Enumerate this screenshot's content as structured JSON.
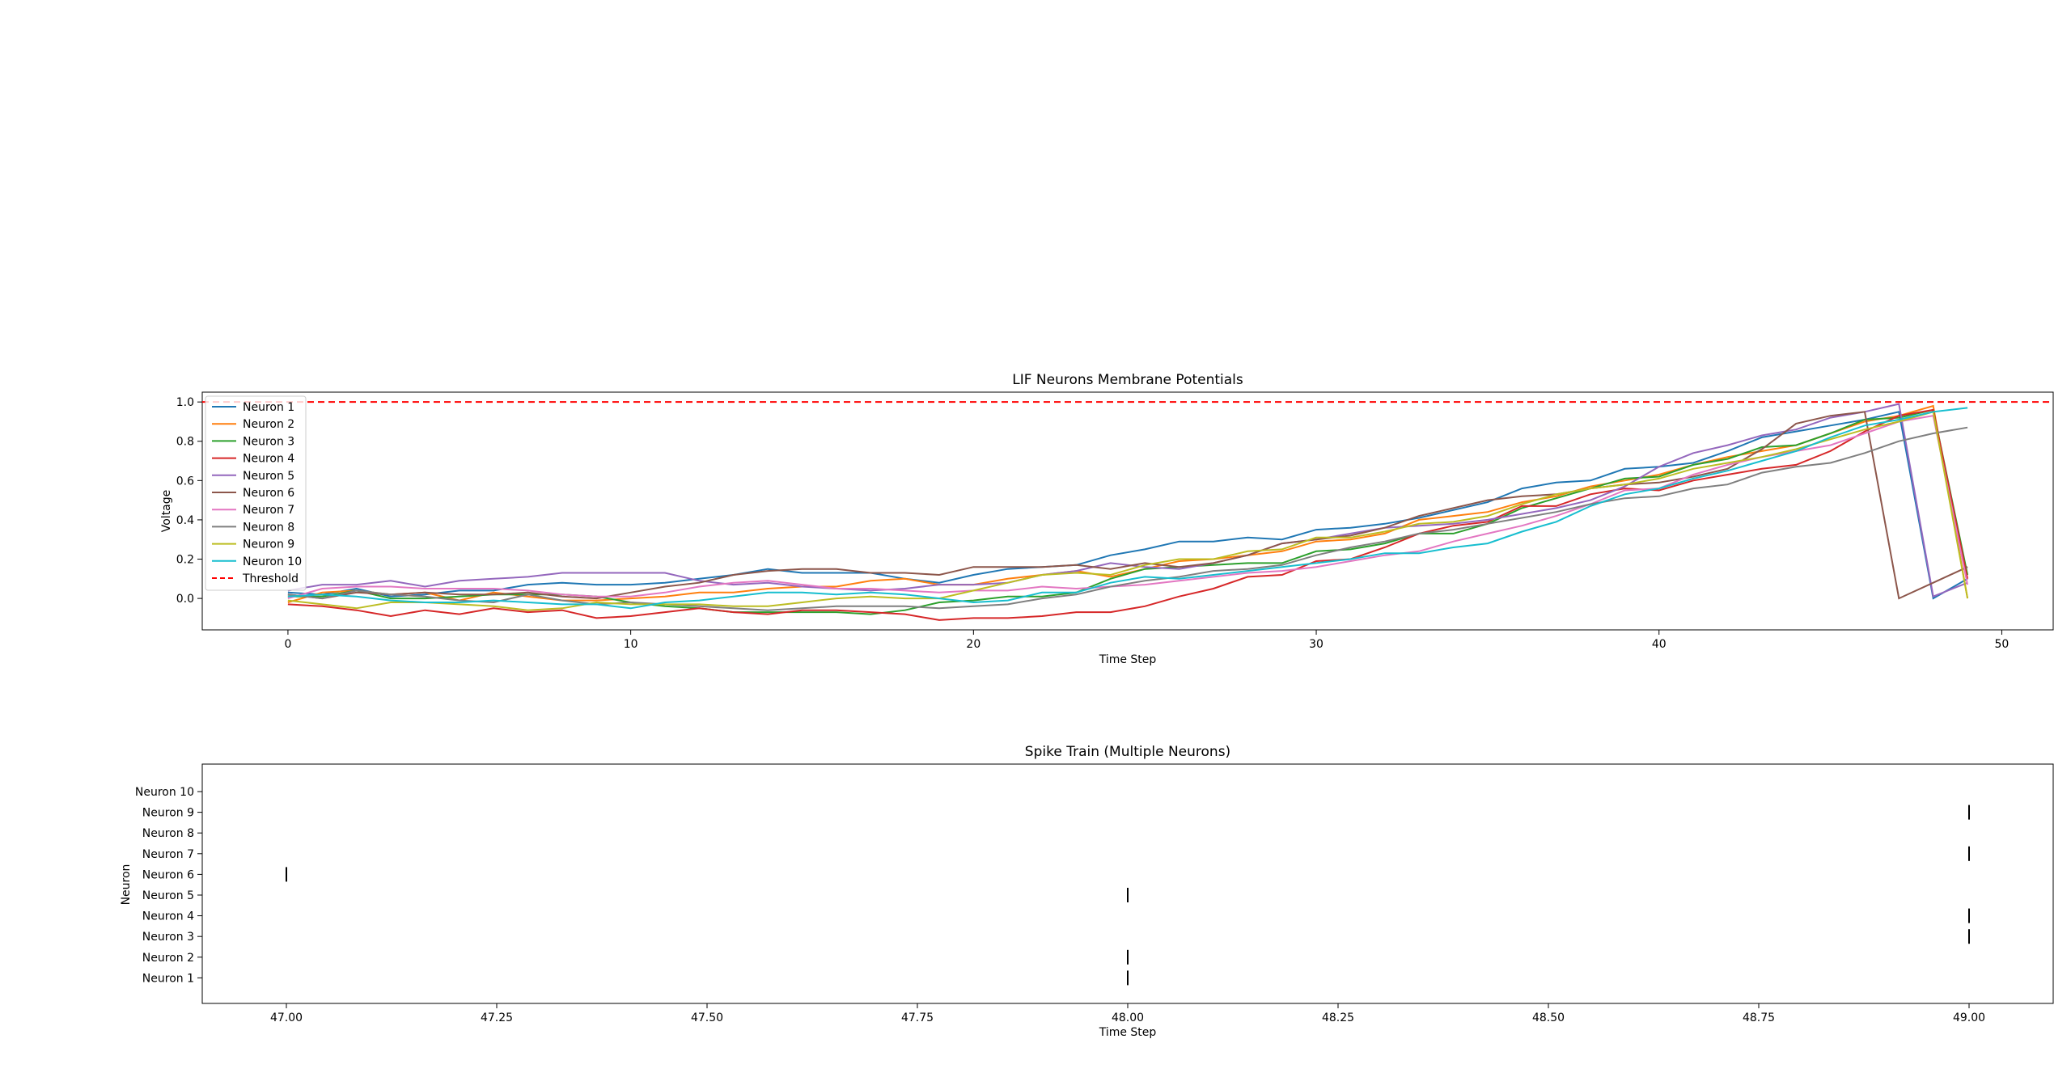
{
  "chart_data": [
    {
      "type": "line",
      "title": "LIF Neurons Membrane Potentials",
      "xlabel": "Time Step",
      "ylabel": "Voltage",
      "xlim": [
        -2.5,
        51.5
      ],
      "ylim": [
        -0.16,
        1.05
      ],
      "xticks": [
        0,
        10,
        20,
        30,
        40,
        50
      ],
      "yticks": [
        0.0,
        0.2,
        0.4,
        0.6,
        0.8,
        1.0
      ],
      "ytick_labels": [
        "0.0",
        "0.2",
        "0.4",
        "0.6",
        "0.8",
        "1.0"
      ],
      "grid": false,
      "legend": "top-left",
      "colors": [
        "#1f77b4",
        "#ff7f0e",
        "#2ca02c",
        "#d62728",
        "#9467bd",
        "#8c564b",
        "#e377c2",
        "#7f7f7f",
        "#bcbd22",
        "#17becf"
      ],
      "threshold": {
        "name": "Threshold",
        "value": 1.0,
        "color": "#ff0000"
      },
      "series": [
        {
          "name": "Neuron 1",
          "values": [
            0.03,
            0.02,
            0.05,
            0.01,
            0.02,
            0.04,
            0.04,
            0.07,
            0.08,
            0.07,
            0.07,
            0.08,
            0.1,
            0.12,
            0.15,
            0.13,
            0.13,
            0.13,
            0.1,
            0.08,
            0.12,
            0.15,
            0.16,
            0.17,
            0.22,
            0.25,
            0.29,
            0.29,
            0.31,
            0.3,
            0.35,
            0.36,
            0.38,
            0.41,
            0.45,
            0.49,
            0.56,
            0.59,
            0.6,
            0.66,
            0.67,
            0.69,
            0.75,
            0.82,
            0.85,
            0.88,
            0.91,
            0.95,
            0.0,
            0.1
          ]
        },
        {
          "name": "Neuron 2",
          "values": [
            -0.02,
            0.03,
            0.04,
            0.02,
            0.03,
            -0.01,
            0.03,
            0.01,
            -0.01,
            -0.01,
            0.0,
            0.01,
            0.03,
            0.03,
            0.05,
            0.06,
            0.06,
            0.09,
            0.1,
            0.07,
            0.07,
            0.1,
            0.12,
            0.14,
            0.11,
            0.15,
            0.19,
            0.2,
            0.22,
            0.24,
            0.29,
            0.3,
            0.33,
            0.4,
            0.42,
            0.44,
            0.49,
            0.52,
            0.57,
            0.6,
            0.63,
            0.68,
            0.72,
            0.75,
            0.78,
            0.84,
            0.9,
            0.93,
            0.98,
            0.0
          ]
        },
        {
          "name": "Neuron 3",
          "values": [
            0.01,
            0.01,
            0.04,
            0.0,
            0.0,
            0.01,
            0.02,
            0.02,
            0.02,
            0.01,
            -0.02,
            -0.04,
            -0.05,
            -0.07,
            -0.07,
            -0.07,
            -0.07,
            -0.08,
            -0.06,
            -0.02,
            -0.01,
            0.01,
            0.01,
            0.03,
            0.1,
            0.15,
            0.16,
            0.17,
            0.18,
            0.18,
            0.24,
            0.25,
            0.28,
            0.33,
            0.33,
            0.38,
            0.46,
            0.51,
            0.56,
            0.61,
            0.62,
            0.68,
            0.71,
            0.77,
            0.78,
            0.84,
            0.91,
            0.92,
            0.96,
            0.12
          ]
        },
        {
          "name": "Neuron 4",
          "values": [
            -0.03,
            -0.04,
            -0.06,
            -0.09,
            -0.06,
            -0.08,
            -0.05,
            -0.07,
            -0.06,
            -0.1,
            -0.09,
            -0.07,
            -0.05,
            -0.07,
            -0.08,
            -0.06,
            -0.06,
            -0.07,
            -0.08,
            -0.11,
            -0.1,
            -0.1,
            -0.09,
            -0.07,
            -0.07,
            -0.04,
            0.01,
            0.05,
            0.11,
            0.12,
            0.19,
            0.2,
            0.26,
            0.33,
            0.37,
            0.39,
            0.47,
            0.47,
            0.53,
            0.56,
            0.55,
            0.6,
            0.63,
            0.66,
            0.68,
            0.75,
            0.85,
            0.93,
            0.96,
            0.1
          ]
        },
        {
          "name": "Neuron 5",
          "values": [
            0.04,
            0.07,
            0.07,
            0.09,
            0.06,
            0.09,
            0.1,
            0.11,
            0.13,
            0.13,
            0.13,
            0.13,
            0.09,
            0.07,
            0.08,
            0.06,
            0.05,
            0.04,
            0.05,
            0.07,
            0.07,
            0.08,
            0.12,
            0.14,
            0.18,
            0.16,
            0.15,
            0.18,
            0.22,
            0.28,
            0.3,
            0.33,
            0.36,
            0.37,
            0.38,
            0.4,
            0.43,
            0.46,
            0.5,
            0.57,
            0.67,
            0.74,
            0.78,
            0.83,
            0.86,
            0.92,
            0.95,
            0.99,
            0.01,
            0.08
          ]
        },
        {
          "name": "Neuron 6",
          "values": [
            0.02,
            0.0,
            0.03,
            0.02,
            0.03,
            0.02,
            0.02,
            0.03,
            0.01,
            0.0,
            0.03,
            0.06,
            0.08,
            0.12,
            0.14,
            0.15,
            0.15,
            0.13,
            0.13,
            0.12,
            0.16,
            0.16,
            0.16,
            0.17,
            0.15,
            0.18,
            0.16,
            0.18,
            0.22,
            0.28,
            0.3,
            0.32,
            0.36,
            0.42,
            0.46,
            0.5,
            0.52,
            0.53,
            0.56,
            0.58,
            0.59,
            0.62,
            0.66,
            0.76,
            0.89,
            0.93,
            0.95,
            0.0,
            0.08,
            0.16
          ]
        },
        {
          "name": "Neuron 7",
          "values": [
            0.0,
            0.05,
            0.06,
            0.06,
            0.05,
            0.05,
            0.05,
            0.04,
            0.02,
            0.01,
            0.01,
            0.03,
            0.06,
            0.08,
            0.09,
            0.07,
            0.05,
            0.05,
            0.04,
            0.03,
            0.04,
            0.04,
            0.06,
            0.05,
            0.06,
            0.07,
            0.09,
            0.11,
            0.13,
            0.14,
            0.16,
            0.19,
            0.22,
            0.24,
            0.29,
            0.33,
            0.37,
            0.42,
            0.48,
            0.55,
            0.56,
            0.63,
            0.68,
            0.72,
            0.75,
            0.78,
            0.84,
            0.9,
            0.93,
            0.07
          ]
        },
        {
          "name": "Neuron 8",
          "values": [
            0.02,
            0.0,
            0.04,
            0.02,
            0.01,
            -0.01,
            -0.02,
            0.02,
            -0.01,
            -0.03,
            -0.02,
            -0.03,
            -0.04,
            -0.05,
            -0.06,
            -0.05,
            -0.04,
            -0.04,
            -0.04,
            -0.05,
            -0.04,
            -0.03,
            0.0,
            0.02,
            0.06,
            0.09,
            0.11,
            0.14,
            0.15,
            0.17,
            0.22,
            0.26,
            0.29,
            0.33,
            0.35,
            0.38,
            0.41,
            0.44,
            0.48,
            0.51,
            0.52,
            0.56,
            0.58,
            0.64,
            0.67,
            0.69,
            0.74,
            0.8,
            0.84,
            0.87
          ]
        },
        {
          "name": "Neuron 9",
          "values": [
            -0.01,
            -0.03,
            -0.05,
            -0.02,
            -0.02,
            -0.03,
            -0.04,
            -0.06,
            -0.05,
            -0.02,
            -0.03,
            -0.03,
            -0.03,
            -0.04,
            -0.04,
            -0.02,
            0.0,
            0.01,
            0.0,
            0.0,
            0.04,
            0.08,
            0.12,
            0.13,
            0.12,
            0.17,
            0.2,
            0.2,
            0.24,
            0.25,
            0.31,
            0.31,
            0.34,
            0.38,
            0.39,
            0.42,
            0.48,
            0.53,
            0.56,
            0.58,
            0.61,
            0.66,
            0.69,
            0.72,
            0.76,
            0.81,
            0.86,
            0.9,
            0.95,
            0.0
          ]
        },
        {
          "name": "Neuron 10",
          "values": [
            0.01,
            0.02,
            0.01,
            -0.01,
            -0.02,
            -0.02,
            -0.01,
            -0.02,
            -0.03,
            -0.03,
            -0.05,
            -0.02,
            -0.01,
            0.01,
            0.03,
            0.03,
            0.02,
            0.03,
            0.02,
            0.0,
            -0.02,
            -0.01,
            0.03,
            0.03,
            0.08,
            0.11,
            0.1,
            0.12,
            0.14,
            0.16,
            0.18,
            0.2,
            0.23,
            0.23,
            0.26,
            0.28,
            0.34,
            0.39,
            0.47,
            0.53,
            0.56,
            0.61,
            0.65,
            0.7,
            0.75,
            0.82,
            0.88,
            0.91,
            0.95,
            0.97
          ]
        }
      ]
    },
    {
      "type": "scatter",
      "title": "Spike Train (Multiple Neurons)",
      "xlabel": "Time Step",
      "ylabel": "Neuron",
      "xlim": [
        46.9,
        49.1
      ],
      "xticks": [
        47.0,
        47.25,
        47.5,
        47.75,
        48.0,
        48.25,
        48.5,
        48.75,
        49.0
      ],
      "xtick_labels": [
        "47.00",
        "47.25",
        "47.50",
        "47.75",
        "48.00",
        "48.25",
        "48.50",
        "48.75",
        "49.00"
      ],
      "categories": [
        "Neuron 1",
        "Neuron 2",
        "Neuron 3",
        "Neuron 4",
        "Neuron 5",
        "Neuron 6",
        "Neuron 7",
        "Neuron 8",
        "Neuron 9",
        "Neuron 10"
      ],
      "marker_color": "#000000",
      "spikes": [
        {
          "neuron": 1,
          "time": 48.0
        },
        {
          "neuron": 2,
          "time": 48.0
        },
        {
          "neuron": 3,
          "time": 49.0
        },
        {
          "neuron": 4,
          "time": 49.0
        },
        {
          "neuron": 5,
          "time": 48.0
        },
        {
          "neuron": 6,
          "time": 47.0
        },
        {
          "neuron": 7,
          "time": 49.0
        },
        {
          "neuron": 9,
          "time": 49.0
        }
      ]
    }
  ]
}
